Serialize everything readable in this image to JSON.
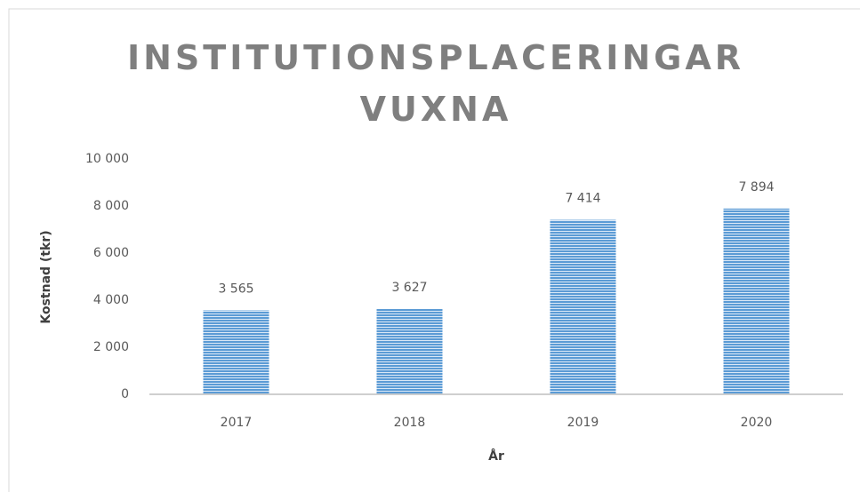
{
  "chart_data": {
    "type": "bar",
    "title": "INSTITUTIONSPLACERINGAR VUXNA",
    "y_label": "Kostnad (tkr)",
    "x_label": "År",
    "categories": [
      "2017",
      "2018",
      "2019",
      "2020"
    ],
    "values": [
      3565,
      3627,
      7414,
      7894
    ],
    "value_labels": [
      "3 565",
      "3 627",
      "7 414",
      "7 894"
    ],
    "color": "#5b9bd5",
    "ylim": [
      0,
      10000
    ],
    "yticks": [
      0,
      {
        "value": 2000,
        "label": "2 000"
      },
      {
        "value": 4000,
        "label": "4 000"
      },
      {
        "value": 6000,
        "label": "6 000"
      },
      {
        "value": 8000,
        "label": "8 000"
      },
      {
        "value": 10000,
        "label": "10 000"
      }
    ],
    "grid": false
  }
}
